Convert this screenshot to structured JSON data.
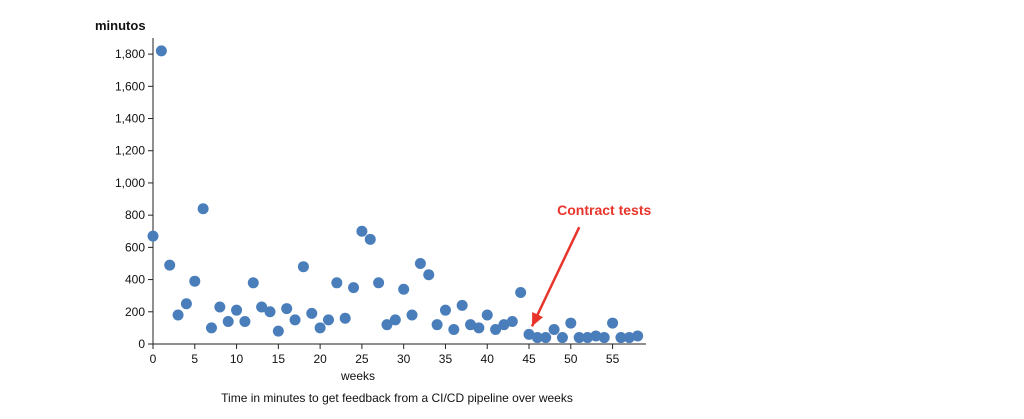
{
  "chart_data": {
    "type": "scatter",
    "title": "",
    "caption": "Time in minutes to get feedback from a CI/CD pipeline over weeks",
    "xlabel": "weeks",
    "ylabel": "minutos",
    "xlim": [
      0,
      59
    ],
    "ylim": [
      0,
      1900
    ],
    "xticks": [
      0,
      5,
      10,
      15,
      20,
      25,
      30,
      35,
      40,
      45,
      50,
      55
    ],
    "yticks": [
      0,
      200,
      400,
      600,
      800,
      1000,
      1200,
      1400,
      1600,
      1800
    ],
    "ytick_labels": [
      "0",
      "200",
      "400",
      "600",
      "800",
      "1,000",
      "1,200",
      "1,400",
      "1,600",
      "1,800"
    ],
    "grid": false,
    "point_color": "#4a7ebb",
    "annotation": {
      "text": "Contract tests",
      "color": "#e8352c",
      "target": [
        45,
        60
      ],
      "text_anchor_data": [
        54,
        800
      ]
    },
    "points": [
      [
        0,
        670
      ],
      [
        1,
        1820
      ],
      [
        2,
        490
      ],
      [
        3,
        180
      ],
      [
        4,
        250
      ],
      [
        5,
        390
      ],
      [
        6,
        840
      ],
      [
        7,
        100
      ],
      [
        8,
        230
      ],
      [
        9,
        140
      ],
      [
        10,
        210
      ],
      [
        11,
        140
      ],
      [
        12,
        380
      ],
      [
        13,
        230
      ],
      [
        14,
        200
      ],
      [
        15,
        80
      ],
      [
        16,
        220
      ],
      [
        17,
        150
      ],
      [
        18,
        480
      ],
      [
        19,
        190
      ],
      [
        20,
        100
      ],
      [
        21,
        150
      ],
      [
        22,
        380
      ],
      [
        23,
        160
      ],
      [
        24,
        350
      ],
      [
        25,
        700
      ],
      [
        26,
        650
      ],
      [
        27,
        380
      ],
      [
        28,
        120
      ],
      [
        29,
        150
      ],
      [
        30,
        340
      ],
      [
        31,
        180
      ],
      [
        32,
        500
      ],
      [
        33,
        430
      ],
      [
        34,
        120
      ],
      [
        35,
        210
      ],
      [
        36,
        90
      ],
      [
        37,
        240
      ],
      [
        38,
        120
      ],
      [
        39,
        100
      ],
      [
        40,
        180
      ],
      [
        41,
        90
      ],
      [
        42,
        120
      ],
      [
        43,
        140
      ],
      [
        44,
        320
      ],
      [
        45,
        60
      ],
      [
        46,
        40
      ],
      [
        47,
        40
      ],
      [
        48,
        90
      ],
      [
        49,
        40
      ],
      [
        50,
        130
      ],
      [
        51,
        40
      ],
      [
        52,
        40
      ],
      [
        53,
        50
      ],
      [
        54,
        40
      ],
      [
        55,
        130
      ],
      [
        56,
        40
      ],
      [
        57,
        40
      ],
      [
        58,
        50
      ]
    ]
  }
}
